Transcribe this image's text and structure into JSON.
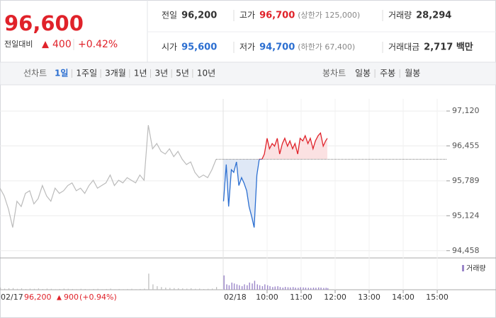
{
  "header": {
    "price": "96,600",
    "change_label": "전일대비",
    "change": "400",
    "change_pct": "+0.42%"
  },
  "info": [
    {
      "label": "전일",
      "value": "96,200"
    },
    {
      "label": "고가",
      "value": "96,700",
      "note": "(상한가 125,000)"
    },
    {
      "label": "거래량",
      "value": "28,294"
    },
    {
      "label": "시가",
      "value": "95,600"
    },
    {
      "label": "저가",
      "value": "94,700",
      "note": "(하한가 67,400)"
    },
    {
      "label": "거래대금",
      "value": "2,717 백만"
    }
  ],
  "tabs": {
    "line_label": "선차트",
    "line_tabs": [
      "1일",
      "1주일",
      "3개월",
      "1년",
      "3년",
      "5년",
      "10년"
    ],
    "candle_label": "봉차트",
    "candle_tabs": [
      "일봉",
      "주봉",
      "월봉"
    ]
  },
  "chart_data": {
    "type": "line",
    "ylim": [
      94320,
      97350
    ],
    "yticks": [
      {
        "value": 97120,
        "label": "97,120"
      },
      {
        "value": 96455,
        "label": "96,455"
      },
      {
        "value": 95789,
        "label": "95,789"
      },
      {
        "value": 95124,
        "label": "95,124"
      },
      {
        "value": 94458,
        "label": "94,458"
      }
    ],
    "xlim": [
      8.71,
      15.27
    ],
    "xticks": [
      {
        "value": 10,
        "label": "10:00"
      },
      {
        "value": 11,
        "label": "11:00"
      },
      {
        "value": 12,
        "label": "12:00"
      },
      {
        "value": 13,
        "label": "13:00"
      },
      {
        "value": 14,
        "label": "14:00"
      },
      {
        "value": 15,
        "label": "15:00"
      }
    ],
    "baseline": 96200,
    "prev_date": "02/17",
    "prev_close": "96,200",
    "prev_change": "900",
    "prev_change_pct": "(+0.94%)",
    "date": "02/18",
    "volume_label": "거래량",
    "vlim": [
      0,
      1500
    ],
    "prev_series": {
      "color": "#bbbbbb",
      "values": [
        95650,
        95500,
        95250,
        94900,
        95400,
        95300,
        95550,
        95600,
        95350,
        95450,
        95700,
        95500,
        95400,
        95650,
        95550,
        95600,
        95700,
        95750,
        95600,
        95650,
        95550,
        95700,
        95800,
        95650,
        95700,
        95750,
        95900,
        95700,
        95800,
        95750,
        95850,
        95800,
        95750,
        95900,
        95800,
        96850,
        96400,
        96500,
        96350,
        96300,
        96400,
        96250,
        96350,
        96200,
        96100,
        96150,
        95950,
        95850,
        95900,
        95850,
        96000,
        96200
      ],
      "volume": [
        120,
        60,
        80,
        90,
        50,
        70,
        40,
        60,
        50,
        70,
        40,
        60,
        50,
        30,
        40,
        60,
        50,
        40,
        30,
        50,
        40,
        30,
        40,
        50,
        30,
        40,
        60,
        30,
        40,
        30,
        40,
        50,
        30,
        40,
        60,
        900,
        300,
        200,
        150,
        120,
        100,
        90,
        80,
        70,
        60,
        80,
        50,
        60,
        40,
        50,
        60,
        150
      ]
    },
    "series": {
      "up_color": "#e0222a",
      "down_color": "#2c6fd1",
      "up_fill": "#fbe1e2",
      "down_fill": "#dfe8f6",
      "volume_color": "#9b86c9",
      "x": [
        8.72,
        8.8,
        8.87,
        8.95,
        9.02,
        9.1,
        9.17,
        9.25,
        9.32,
        9.4,
        9.47,
        9.55,
        9.62,
        9.7,
        9.77,
        9.85,
        9.92,
        10.0,
        10.07,
        10.15,
        10.22,
        10.3,
        10.37,
        10.45,
        10.52,
        10.6,
        10.67,
        10.75,
        10.82,
        10.9,
        10.97,
        11.05,
        11.12,
        11.2,
        11.27,
        11.35,
        11.42,
        11.5,
        11.57,
        11.65,
        11.72,
        11.77
      ],
      "values": [
        95400,
        96100,
        95300,
        96000,
        95950,
        96150,
        95700,
        95850,
        95750,
        95600,
        95300,
        95100,
        94900,
        95900,
        96200,
        96200,
        96300,
        96600,
        96400,
        96500,
        96450,
        96600,
        96300,
        96500,
        96600,
        96450,
        96550,
        96400,
        96500,
        96300,
        96600,
        96550,
        96650,
        96500,
        96600,
        96400,
        96550,
        96650,
        96700,
        96450,
        96550,
        96600
      ],
      "volume": [
        800,
        300,
        250,
        400,
        350,
        300,
        250,
        200,
        300,
        250,
        400,
        350,
        500,
        300,
        250,
        200,
        300,
        250,
        200,
        150,
        180,
        200,
        150,
        120,
        160,
        140,
        130,
        150,
        120,
        110,
        140,
        130,
        120,
        110,
        100,
        120,
        110,
        130,
        120,
        100,
        110,
        90
      ]
    }
  }
}
